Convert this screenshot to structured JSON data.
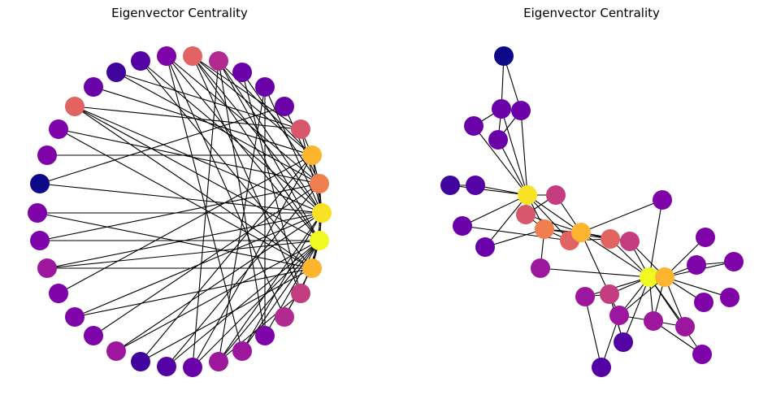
{
  "panels": [
    {
      "title": "Eigenvector Centrality"
    },
    {
      "title": "Eigenvector Centrality"
    }
  ],
  "node_colors": {
    "yellow_bright": "#f0f921",
    "yellow": "#f7e225",
    "orange_light": "#fdb42f",
    "orange": "#f89540",
    "orange_red": "#f07f4f",
    "salmon": "#e16462",
    "rose": "#d8576b",
    "pink": "#c33d80",
    "magenta": "#b12a90",
    "purple_light": "#9c179e",
    "purple": "#7e03a8",
    "violet": "#6a00a8",
    "indigo": "#5402a3",
    "deep_indigo": "#3e049c",
    "navy": "#0d0887"
  }
}
